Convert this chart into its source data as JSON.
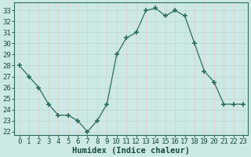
{
  "x": [
    0,
    1,
    2,
    3,
    4,
    5,
    6,
    7,
    8,
    9,
    10,
    11,
    12,
    13,
    14,
    15,
    16,
    17,
    18,
    19,
    20,
    21,
    22,
    23
  ],
  "y": [
    28,
    27,
    26,
    24.5,
    23.5,
    23.5,
    23,
    22,
    23,
    24.5,
    29,
    30.5,
    31,
    33,
    33.2,
    32.5,
    33,
    32.5,
    30,
    27.5,
    26.5,
    24.5,
    24.5,
    24.5
  ],
  "xlim": [
    -0.5,
    23.5
  ],
  "ylim": [
    21.7,
    33.7
  ],
  "yticks": [
    22,
    23,
    24,
    25,
    26,
    27,
    28,
    29,
    30,
    31,
    32,
    33
  ],
  "xtick_labels": [
    "0",
    "1",
    "2",
    "3",
    "4",
    "5",
    "6",
    "7",
    "8",
    "9",
    "10",
    "11",
    "12",
    "13",
    "14",
    "15",
    "16",
    "17",
    "18",
    "19",
    "20",
    "21",
    "22",
    "23"
  ],
  "xlabel": "Humidex (Indice chaleur)",
  "line_color": "#2d6b5e",
  "marker_color": "#2d6b5e",
  "bg_color": "#cce9e5",
  "grid_color_major": "#b8d8d4",
  "grid_color_minor": "#e8c8c8",
  "axes_bg": "#cce9e5",
  "font_size_axis": 6.5,
  "font_size_xlabel": 7.5,
  "font_family": "monospace"
}
